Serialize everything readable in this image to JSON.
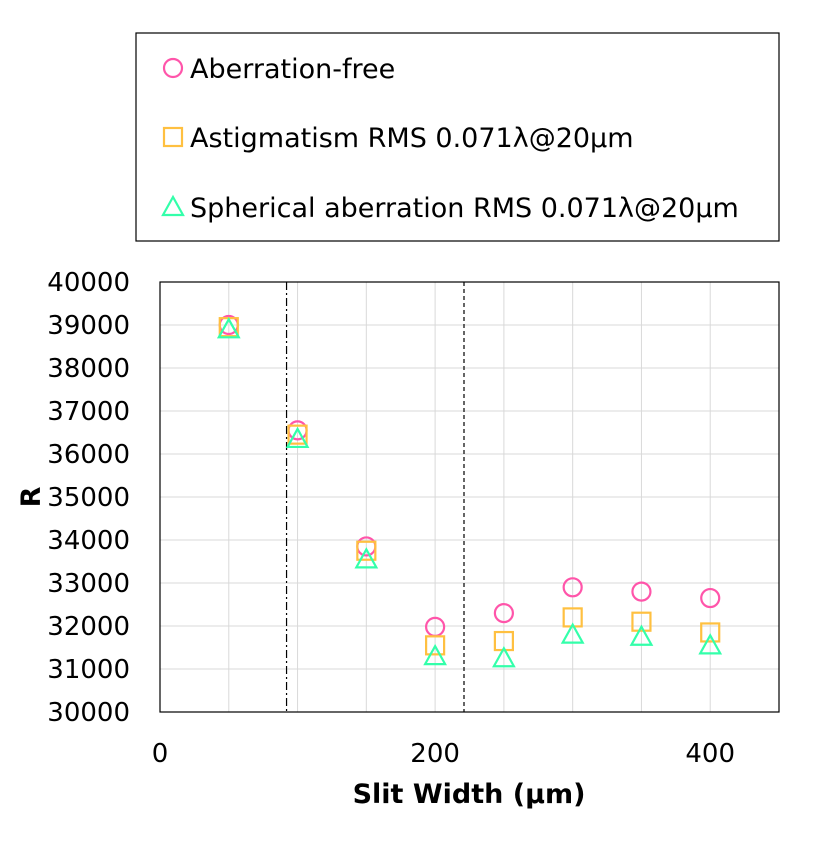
{
  "chart_data": {
    "type": "scatter",
    "title": "",
    "xlabel": "Slit Width (µm)",
    "ylabel": "R",
    "xlim": [
      0,
      450
    ],
    "ylim": [
      30000,
      40000
    ],
    "xticks": [
      0,
      200,
      400
    ],
    "yticks": [
      30000,
      31000,
      32000,
      33000,
      34000,
      35000,
      36000,
      37000,
      38000,
      39000,
      40000
    ],
    "x_minor_grid": [
      50,
      100,
      150,
      250,
      300,
      350
    ],
    "grid": true,
    "legend_position": "top",
    "reference_lines": [
      {
        "x": 92,
        "style": "dash-dot"
      },
      {
        "x": 221,
        "style": "dashed"
      }
    ],
    "x": [
      50,
      100,
      150,
      200,
      250,
      300,
      350,
      400
    ],
    "series": [
      {
        "name": "Aberration-free",
        "marker": "circle",
        "color": "#ff55aa",
        "values": [
          39000,
          36550,
          33850,
          31980,
          32300,
          32900,
          32800,
          32650
        ]
      },
      {
        "name": "Astigmatism RMS 0.071λ@20µm",
        "marker": "square",
        "color": "#ffc040",
        "values": [
          38950,
          36450,
          33750,
          31550,
          31650,
          32200,
          32100,
          31850
        ]
      },
      {
        "name": "Spherical aberration RMS 0.071λ@20µm",
        "marker": "triangle",
        "color": "#33ffaa",
        "values": [
          38900,
          36350,
          33550,
          31300,
          31250,
          31800,
          31750,
          31550
        ]
      }
    ]
  }
}
